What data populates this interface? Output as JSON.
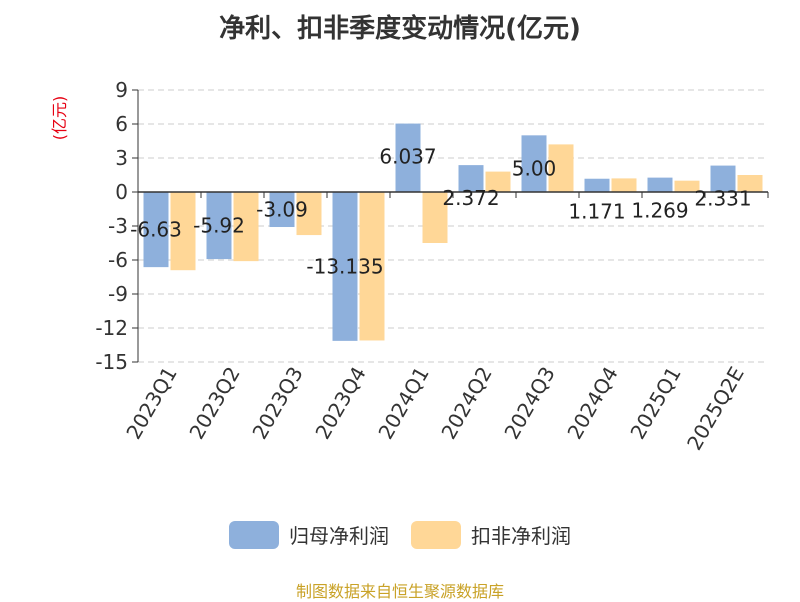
{
  "chart_data": {
    "type": "bar",
    "title": "净利、扣非季度变动情况(亿元)",
    "ylabel": "(亿元)",
    "categories": [
      "2023Q1",
      "2023Q2",
      "2023Q3",
      "2023Q4",
      "2024Q1",
      "2024Q2",
      "2024Q3",
      "2024Q4",
      "2025Q1",
      "2025Q2E"
    ],
    "series": [
      {
        "name": "归母净利润",
        "color": "#8eb0dc",
        "values": [
          -6.63,
          -5.92,
          -3.09,
          -13.135,
          6.037,
          2.372,
          5.0,
          1.171,
          1.269,
          2.331
        ],
        "labels": [
          "-6.63",
          "-5.92",
          "-3.09",
          "-13.135",
          "6.037",
          "2.372",
          "5.00",
          "1.171",
          "1.269",
          "2.331"
        ]
      },
      {
        "name": "扣非净利润",
        "color": "#ffd797",
        "values": [
          -6.9,
          -6.1,
          -3.8,
          -13.1,
          -4.5,
          1.8,
          4.2,
          1.2,
          1.0,
          1.5
        ]
      }
    ],
    "ylim": [
      -15,
      9
    ],
    "yticks": [
      9,
      6,
      3,
      0,
      -3,
      -6,
      -9,
      -12,
      -15
    ],
    "grid": true,
    "legend": "bottom"
  },
  "source": "制图数据来自恒生聚源数据库"
}
